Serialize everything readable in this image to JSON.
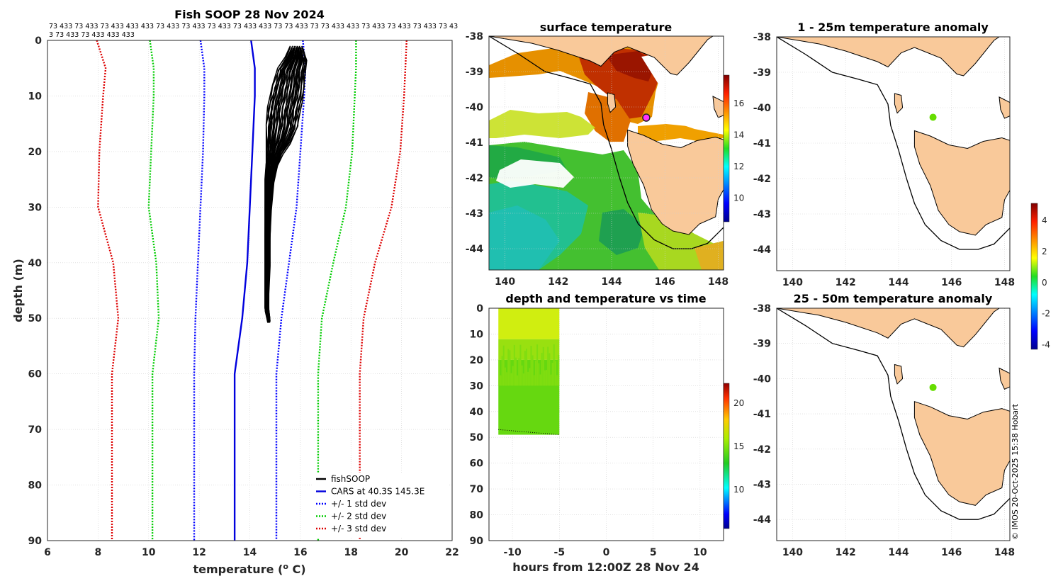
{
  "colors": {
    "fishsoop": "#000000",
    "cars": "#0000dd",
    "std1": "#0000ff",
    "std2": "#00cc00",
    "std3": "#dd0000",
    "land": "#f9c99a",
    "grid": "#d0d0d0"
  },
  "chart_data": [
    {
      "type": "line",
      "name": "profile",
      "title": "Fish SOOP 28 Nov 2024",
      "station_text": [
        "73 433 73 433 73 433 433 433 73 433 73 433 73 433 73 433 433 73 73 433 73 73 433 433 73 433 73 433 73 433 73 43",
        "3 73 433 73 433 433 433"
      ],
      "xlabel": "temperature (",
      "xlabel_sup": "o",
      "xlabel_end": " C)",
      "ylabel": "depth (m)",
      "xlim": [
        6,
        22
      ],
      "ylim": [
        90,
        0
      ],
      "xticks": [
        6,
        8,
        10,
        12,
        14,
        16,
        18,
        20,
        22
      ],
      "yticks": [
        0,
        10,
        20,
        30,
        40,
        50,
        60,
        70,
        80,
        90
      ],
      "series": [
        {
          "name": "CARS at 40.3S 145.3E",
          "style": "solid",
          "color": "#0000dd",
          "depth": [
            0,
            5,
            10,
            20,
            30,
            40,
            50,
            60,
            70,
            80,
            90
          ],
          "temp": [
            14.05,
            14.2,
            14.2,
            14.1,
            14.0,
            13.9,
            13.7,
            13.4,
            13.4,
            13.4,
            13.4
          ]
        },
        {
          "name": "+/- 1 std dev",
          "style": "dotted",
          "color": "#0000ff",
          "depth": [
            0,
            5,
            10,
            20,
            30,
            40,
            50,
            60,
            70,
            80,
            90
          ],
          "temp": [
            12.05,
            12.2,
            12.2,
            12.15,
            12.05,
            11.95,
            11.85,
            11.8,
            11.8,
            11.8,
            11.8
          ]
        },
        {
          "name": "+/- 1 std dev",
          "style": "dotted",
          "color": "#0000ff",
          "depth": [
            0,
            5,
            10,
            20,
            30,
            40,
            50,
            60,
            70,
            80,
            90
          ],
          "temp": [
            16.1,
            16.2,
            16.15,
            16.0,
            15.85,
            15.55,
            15.25,
            15.05,
            15.05,
            15.05,
            15.05
          ]
        },
        {
          "name": "+/- 2 std dev",
          "style": "dotted",
          "color": "#00cc00",
          "depth": [
            0,
            5,
            10,
            20,
            30,
            40,
            50,
            60,
            70,
            80,
            90
          ],
          "temp": [
            10.05,
            10.2,
            10.2,
            10.1,
            10.0,
            10.3,
            10.4,
            10.15,
            10.15,
            10.15,
            10.15
          ]
        },
        {
          "name": "+/- 2 std dev",
          "style": "dotted",
          "color": "#00cc00",
          "depth": [
            0,
            5,
            10,
            20,
            30,
            40,
            50,
            60,
            70,
            80,
            90
          ],
          "temp": [
            18.2,
            18.2,
            18.15,
            18.05,
            17.8,
            17.3,
            16.85,
            16.7,
            16.7,
            16.7,
            16.7
          ]
        },
        {
          "name": "+/- 3 std dev",
          "style": "dotted",
          "color": "#dd0000",
          "depth": [
            0,
            5,
            10,
            20,
            30,
            40,
            50,
            60,
            70,
            80,
            90
          ],
          "temp": [
            7.95,
            8.3,
            8.2,
            8.05,
            8.0,
            8.6,
            8.8,
            8.55,
            8.55,
            8.55,
            8.55
          ]
        },
        {
          "name": "+/- 3 std dev",
          "style": "dotted",
          "color": "#dd0000",
          "depth": [
            0,
            5,
            10,
            20,
            30,
            40,
            50,
            60,
            70,
            80,
            90
          ],
          "temp": [
            20.2,
            20.15,
            20.1,
            19.95,
            19.6,
            18.95,
            18.5,
            18.35,
            18.35,
            18.35,
            18.35
          ]
        }
      ],
      "fishsoop_envelope": {
        "depth": [
          1,
          3,
          5,
          8,
          10,
          12,
          15,
          18,
          20,
          22,
          25,
          30,
          35,
          40,
          45,
          48,
          50
        ],
        "tmin": [
          15.6,
          15.4,
          15.1,
          14.9,
          14.8,
          14.7,
          14.65,
          14.65,
          14.65,
          14.65,
          14.6,
          14.6,
          14.6,
          14.6,
          14.6,
          14.6,
          14.7
        ],
        "tmax": [
          16.1,
          16.25,
          16.2,
          16.15,
          16.1,
          16.0,
          15.9,
          15.6,
          15.3,
          15.1,
          14.95,
          14.85,
          14.8,
          14.8,
          14.75,
          14.75,
          14.8
        ]
      },
      "legend": [
        {
          "label": "fishSOOP",
          "style": "solid",
          "color": "#000000"
        },
        {
          "label": "CARS at 40.3S 145.3E",
          "style": "solid",
          "color": "#0000dd"
        },
        {
          "label": "+/- 1 std dev",
          "style": "dotted",
          "color": "#0000ff"
        },
        {
          "label": "+/- 2 std dev",
          "style": "dotted",
          "color": "#00cc00"
        },
        {
          "label": "+/- 3 std dev",
          "style": "dotted",
          "color": "#dd0000"
        }
      ],
      "legend_position": "bottom-right"
    },
    {
      "type": "heatmap",
      "name": "surface-temperature-map",
      "title": "surface temperature",
      "xlim": [
        139.4,
        148.2
      ],
      "ylim": [
        -44.6,
        -38
      ],
      "xticks": [
        140,
        142,
        144,
        146,
        148
      ],
      "yticks": [
        -38,
        -39,
        -40,
        -41,
        -42,
        -43,
        -44
      ],
      "colorbar": {
        "range": [
          8.5,
          17.8
        ],
        "ticks": [
          10,
          12,
          14,
          16
        ],
        "colormap": "jet"
      },
      "station": {
        "lon": 145.3,
        "lat": -40.3,
        "color": "#ff33ff"
      }
    },
    {
      "type": "scatter",
      "name": "depth-time",
      "title": "depth and temperature vs time",
      "xlabel": "hours from 12:00Z 28 Nov 24",
      "xlim": [
        -12.5,
        12.5
      ],
      "ylim": [
        90,
        0
      ],
      "xticks": [
        -10,
        -5,
        0,
        5,
        10
      ],
      "yticks": [
        0,
        10,
        20,
        30,
        40,
        50,
        60,
        70,
        80,
        90
      ],
      "time_range": [
        -11.5,
        -5.0
      ],
      "depth_range": [
        0,
        49
      ],
      "colorbar": {
        "range": [
          5.5,
          22.3
        ],
        "ticks": [
          10,
          15,
          20
        ],
        "colormap": "jet"
      }
    },
    {
      "type": "heatmap",
      "name": "anomaly-1-25m",
      "title": "1 - 25m temperature anomaly",
      "xlim": [
        139.4,
        148.2
      ],
      "ylim": [
        -44.6,
        -38
      ],
      "xticks": [
        140,
        142,
        144,
        146,
        148
      ],
      "yticks": [
        -38,
        -39,
        -40,
        -41,
        -42,
        -43,
        -44
      ],
      "marker": {
        "lon": 145.3,
        "lat": -40.27,
        "color": "#66dd00"
      },
      "colorbar": {
        "range": [
          -4.3,
          5.1
        ],
        "ticks": [
          -4,
          -2,
          0,
          2,
          4
        ],
        "colormap": "jet"
      }
    },
    {
      "type": "heatmap",
      "name": "anomaly-25-50m",
      "title": "25 - 50m temperature anomaly",
      "xlim": [
        139.4,
        148.2
      ],
      "ylim": [
        -44.6,
        -38
      ],
      "xticks": [
        140,
        142,
        144,
        146,
        148
      ],
      "yticks": [
        -38,
        -39,
        -40,
        -41,
        -42,
        -43,
        -44
      ],
      "marker": {
        "lon": 145.3,
        "lat": -40.25,
        "color": "#66dd00"
      }
    }
  ],
  "credit": "© IMOS 20-Oct-2025 15:38 Hobart"
}
